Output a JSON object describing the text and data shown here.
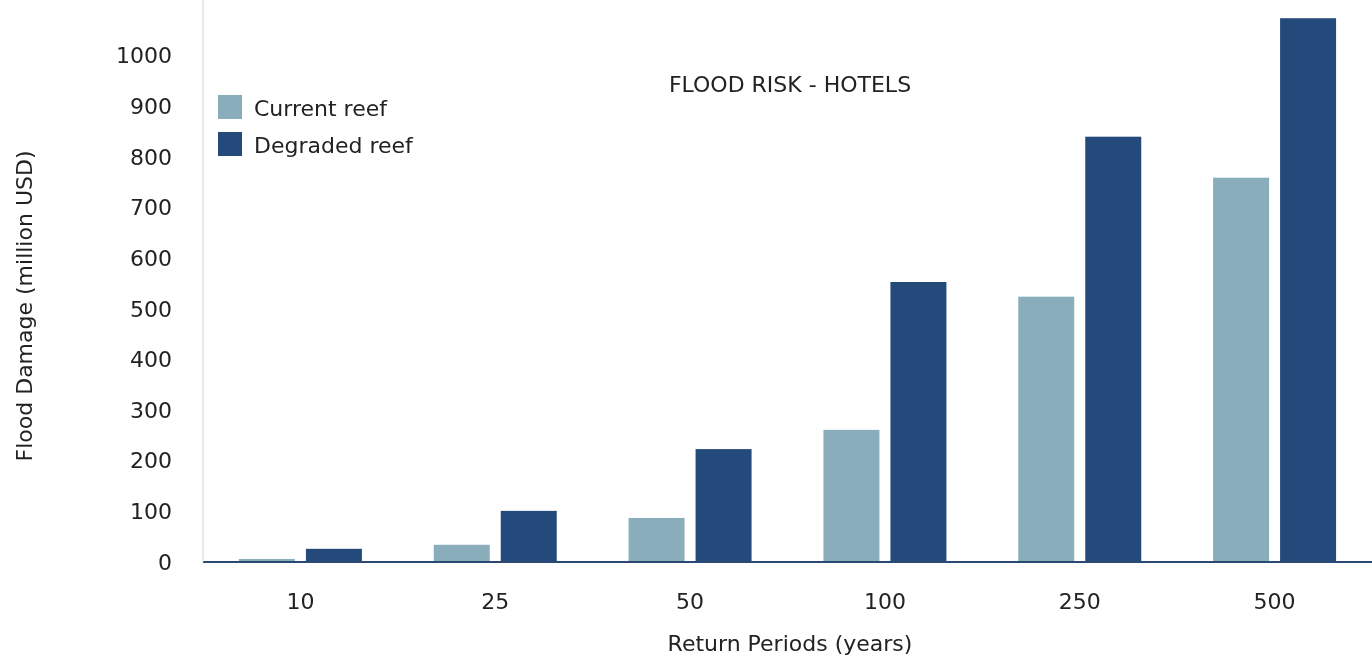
{
  "chart_data": {
    "type": "bar",
    "title": "FLOOD RISK - HOTELS",
    "xlabel": "Return Periods (years)",
    "ylabel": "Flood Damage (million USD)",
    "categories": [
      "10",
      "25",
      "50",
      "100",
      "250",
      "500"
    ],
    "series": [
      {
        "name": "Current reef",
        "color": "#8aadbc",
        "values": [
          6,
          34,
          87,
          261,
          524,
          759
        ]
      },
      {
        "name": "Degraded reef",
        "color": "#244a7b",
        "values": [
          26,
          101,
          223,
          553,
          840,
          1074
        ]
      }
    ],
    "ylim": [
      0,
      1110
    ],
    "yticks": [
      0,
      100,
      200,
      300,
      400,
      500,
      600,
      700,
      800,
      900,
      1000
    ],
    "grid": false,
    "legend": "top left"
  }
}
